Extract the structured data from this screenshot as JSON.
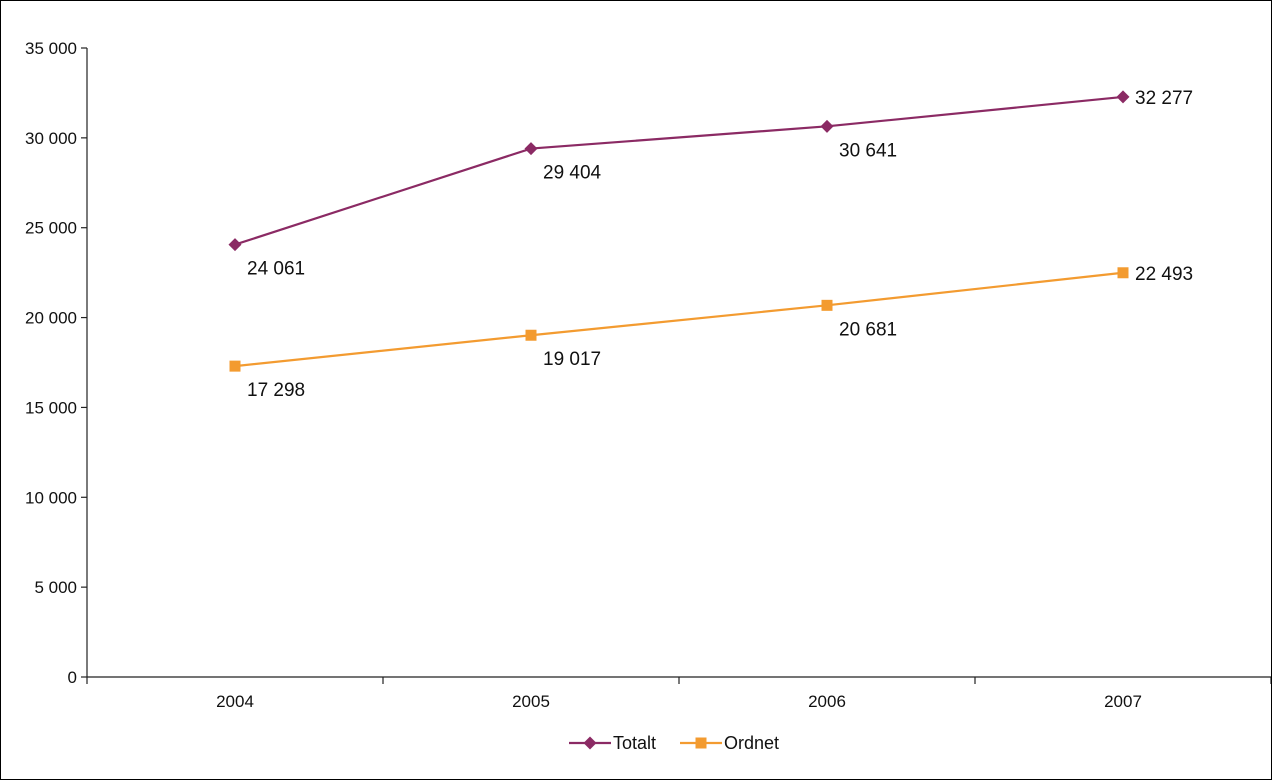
{
  "chart_data": {
    "type": "line",
    "title": "",
    "xlabel": "",
    "ylabel": "",
    "categories": [
      "2004",
      "2005",
      "2006",
      "2007"
    ],
    "ylim": [
      0,
      35000
    ],
    "y_ticks": [
      {
        "value": 0,
        "label": "0"
      },
      {
        "value": 5000,
        "label": "5 000"
      },
      {
        "value": 10000,
        "label": "10 000"
      },
      {
        "value": 15000,
        "label": "15 000"
      },
      {
        "value": 20000,
        "label": "20 000"
      },
      {
        "value": 25000,
        "label": "25 000"
      },
      {
        "value": 30000,
        "label": "30 000"
      },
      {
        "value": 35000,
        "label": "35 000"
      }
    ],
    "grid": false,
    "legend_position": "bottom",
    "series": [
      {
        "name": "Totalt",
        "color": "#8B2A64",
        "marker": "diamond",
        "values": [
          24061,
          29404,
          30641,
          32277
        ],
        "value_labels": [
          "24 061",
          "29 404",
          "30 641",
          "32 277"
        ]
      },
      {
        "name": "Ordnet",
        "color": "#F39B30",
        "marker": "square",
        "values": [
          17298,
          19017,
          20681,
          22493
        ],
        "value_labels": [
          "17 298",
          "19 017",
          "20 681",
          "22 493"
        ]
      }
    ]
  }
}
